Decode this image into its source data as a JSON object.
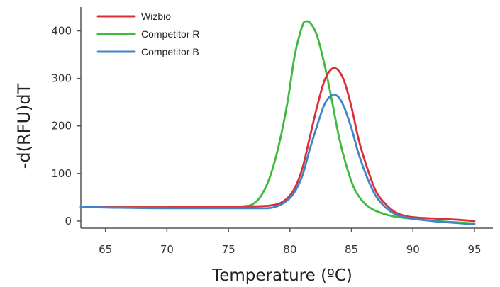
{
  "chart_data": {
    "type": "line",
    "title": "",
    "xlabel": "Temperature (ºC)",
    "ylabel": "-d(RFU)dT",
    "xlim": [
      63,
      96.5
    ],
    "ylim": [
      -15,
      450
    ],
    "x_ticks": [
      65,
      70,
      75,
      80,
      85,
      90,
      95
    ],
    "y_ticks": [
      0,
      100,
      200,
      300,
      400
    ],
    "x_tick_labels": [
      "65",
      "70",
      "75",
      "80",
      "85",
      "90",
      "95"
    ],
    "y_tick_labels": [
      "0",
      "100",
      "200",
      "300",
      "400"
    ],
    "grid": false,
    "legend_position": "top-left",
    "series": [
      {
        "name": "Wizbio",
        "color": "#d9303a",
        "x": [
          63,
          66,
          70,
          74,
          77,
          78.5,
          79.5,
          80.3,
          81,
          81.6,
          82.2,
          82.8,
          83.4,
          83.9,
          84.4,
          85,
          85.6,
          86.3,
          87,
          87.8,
          88.6,
          89.5,
          90.5,
          92,
          93.5,
          95
        ],
        "y": [
          30,
          29,
          29,
          30,
          31,
          33,
          42,
          65,
          110,
          175,
          240,
          295,
          320,
          318,
          295,
          240,
          170,
          110,
          62,
          35,
          18,
          10,
          7,
          5,
          3,
          0
        ]
      },
      {
        "name": "Competitor R",
        "color": "#3dbb3d",
        "x": [
          63,
          66,
          70,
          74,
          76.2,
          77,
          77.7,
          78.4,
          79.1,
          79.8,
          80.4,
          81,
          81.3,
          81.7,
          82.2,
          82.8,
          83.4,
          84,
          84.6,
          85.2,
          85.8,
          86.5,
          87.3,
          88.2,
          89.5,
          91,
          93,
          95
        ],
        "y": [
          30,
          29,
          29,
          30,
          31,
          36,
          55,
          95,
          160,
          250,
          350,
          410,
          420,
          415,
          390,
          330,
          255,
          175,
          115,
          70,
          45,
          28,
          18,
          11,
          6,
          2,
          -2,
          -5
        ]
      },
      {
        "name": "Competitor B",
        "color": "#3f85c7",
        "x": [
          63,
          66,
          70,
          74,
          77,
          78.5,
          79.5,
          80.3,
          81,
          81.6,
          82.2,
          82.8,
          83.4,
          83.9,
          84.4,
          85,
          85.6,
          86.3,
          87,
          87.8,
          88.6,
          89.5,
          90.5,
          92,
          93.5,
          95
        ],
        "y": [
          30,
          28,
          27,
          27,
          27,
          28,
          38,
          58,
          95,
          150,
          200,
          245,
          265,
          262,
          240,
          195,
          140,
          90,
          52,
          28,
          14,
          7,
          3,
          -1,
          -4,
          -7
        ]
      }
    ]
  }
}
